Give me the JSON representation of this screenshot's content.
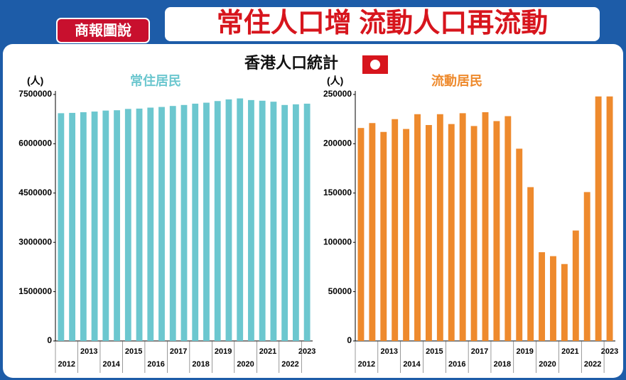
{
  "header": {
    "logo": "商報圖說",
    "title": "常住人口增 流動人口再流動",
    "subtitle": "香港人口統計"
  },
  "chart_data": [
    {
      "type": "bar",
      "title": "常住居民",
      "y_label": "(人)",
      "color": "#6cc7cf",
      "categories": [
        "2012",
        null,
        "2013",
        null,
        "2014",
        null,
        "2015",
        null,
        "2016",
        null,
        "2017",
        null,
        "2018",
        null,
        "2019",
        null,
        "2020",
        null,
        "2021",
        null,
        "2022",
        null,
        "2023"
      ],
      "values": [
        6930000,
        6940000,
        6960000,
        6980000,
        7010000,
        7020000,
        7060000,
        7070000,
        7100000,
        7120000,
        7150000,
        7180000,
        7220000,
        7250000,
        7300000,
        7350000,
        7380000,
        7330000,
        7310000,
        7280000,
        7180000,
        7200000,
        7220000
      ],
      "ylim": [
        0,
        7500000
      ],
      "yticks": [
        0,
        1500000,
        3000000,
        4500000,
        6000000,
        7500000
      ]
    },
    {
      "type": "bar",
      "title": "流動居民",
      "y_label": "(人)",
      "color": "#ee8a2d",
      "categories": [
        "2012",
        null,
        "2013",
        null,
        "2014",
        null,
        "2015",
        null,
        "2016",
        null,
        "2017",
        null,
        "2018",
        null,
        "2019",
        null,
        "2020",
        null,
        "2021",
        null,
        "2022",
        null,
        "2023"
      ],
      "values": [
        216000,
        221000,
        212000,
        225000,
        215000,
        230000,
        219000,
        230000,
        220000,
        231000,
        218000,
        232000,
        223000,
        228000,
        195000,
        156000,
        90000,
        86000,
        78000,
        112000,
        151000,
        248000,
        248000
      ],
      "ylim": [
        0,
        250000
      ],
      "yticks": [
        0,
        50000,
        100000,
        150000,
        200000,
        250000
      ]
    }
  ]
}
